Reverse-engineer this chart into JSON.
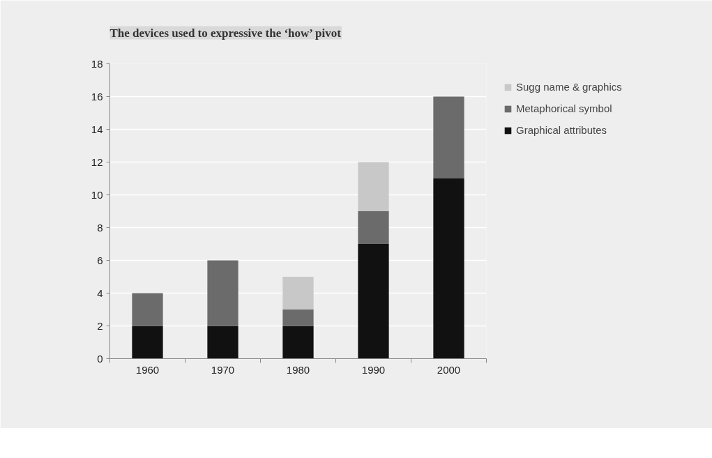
{
  "chart_data": {
    "type": "bar",
    "title": "The devices used to expressive the ‘how’ pivot",
    "categories": [
      "1960",
      "1970",
      "1980",
      "1990",
      "2000"
    ],
    "stacked": true,
    "series": [
      {
        "name": "Graphical attributes",
        "color": "#111111",
        "values": [
          2,
          2,
          2,
          7,
          11
        ]
      },
      {
        "name": "Metaphorical symbol",
        "color": "#6b6b6b",
        "values": [
          2,
          4,
          1,
          2,
          5
        ]
      },
      {
        "name": "Sugg name & graphics",
        "color": "#c8c8c8",
        "values": [
          0,
          0,
          2,
          3,
          0
        ]
      }
    ],
    "ylim": [
      0,
      18
    ],
    "yticks": [
      0,
      2,
      4,
      6,
      8,
      10,
      12,
      14,
      16,
      18
    ],
    "grid": "y",
    "legend": "right"
  }
}
